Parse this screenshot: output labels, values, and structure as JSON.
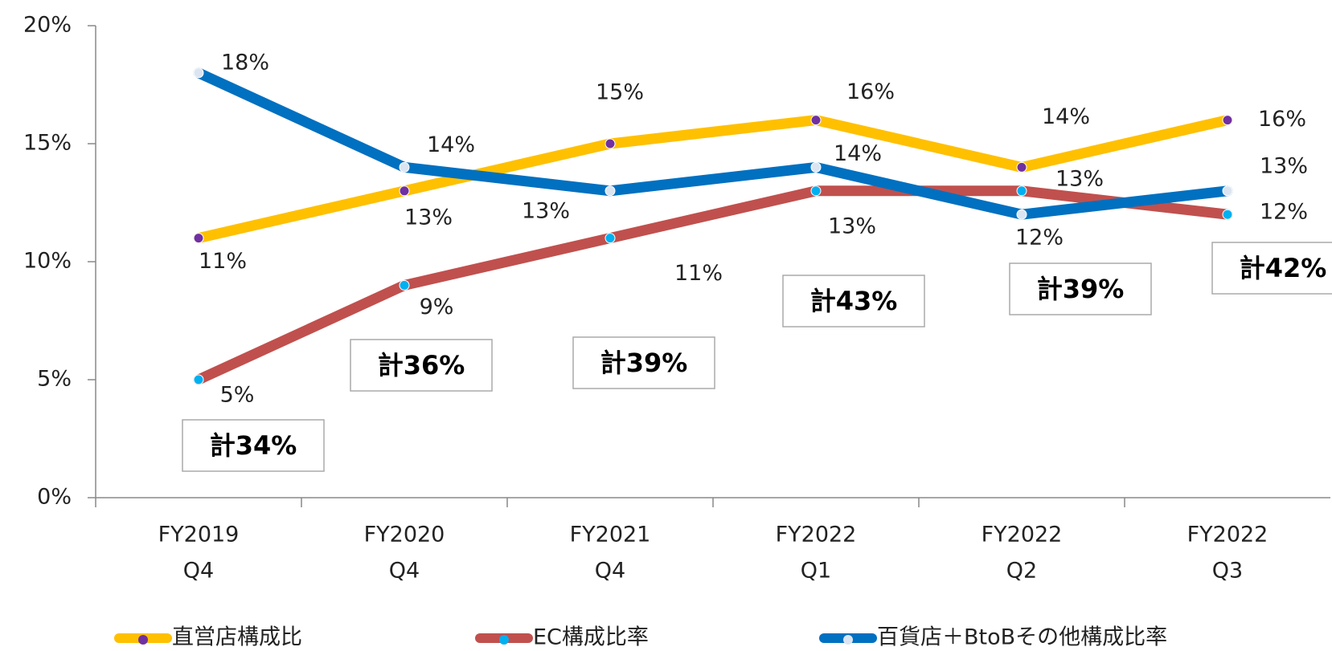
{
  "chart_data": {
    "type": "line",
    "categories": [
      [
        "FY2019",
        "Q4"
      ],
      [
        "FY2020",
        "Q4"
      ],
      [
        "FY2021",
        "Q4"
      ],
      [
        "FY2022",
        "Q1"
      ],
      [
        "FY2022",
        "Q2"
      ],
      [
        "FY2022",
        "Q3"
      ]
    ],
    "series": [
      {
        "name": "直営店構成比",
        "color": "#ffc000",
        "marker_color": "#7030a0",
        "values": [
          11,
          13,
          15,
          16,
          14,
          16
        ],
        "value_labels": [
          "11%",
          "13%",
          "15%",
          "16%",
          "14%",
          "16%"
        ]
      },
      {
        "name": "EC構成比率",
        "color": "#c0504d",
        "marker_color": "#00b0f0",
        "values": [
          5,
          9,
          11,
          13,
          13,
          12
        ],
        "value_labels": [
          "5%",
          "9%",
          "11%",
          "13%",
          "13%",
          "12%"
        ]
      },
      {
        "name": "百貨店＋BtoBその他構成比率",
        "color": "#0070c0",
        "marker_color": "#dbe5f1",
        "values": [
          18,
          14,
          13,
          14,
          12,
          13
        ],
        "value_labels": [
          "18%",
          "14%",
          "13%",
          "14%",
          "12%",
          "13%"
        ]
      }
    ],
    "annotations": [
      "計34%",
      "計36%",
      "計39%",
      "計43%",
      "計39%",
      "計42%"
    ],
    "ylim": [
      0,
      20
    ],
    "yticks": [
      {
        "value": 0,
        "label": "0%"
      },
      {
        "value": 5,
        "label": "5%"
      },
      {
        "value": 10,
        "label": "10%"
      },
      {
        "value": 15,
        "label": "15%"
      },
      {
        "value": 20,
        "label": "20%"
      }
    ],
    "grid": false,
    "legend": "bottom"
  }
}
